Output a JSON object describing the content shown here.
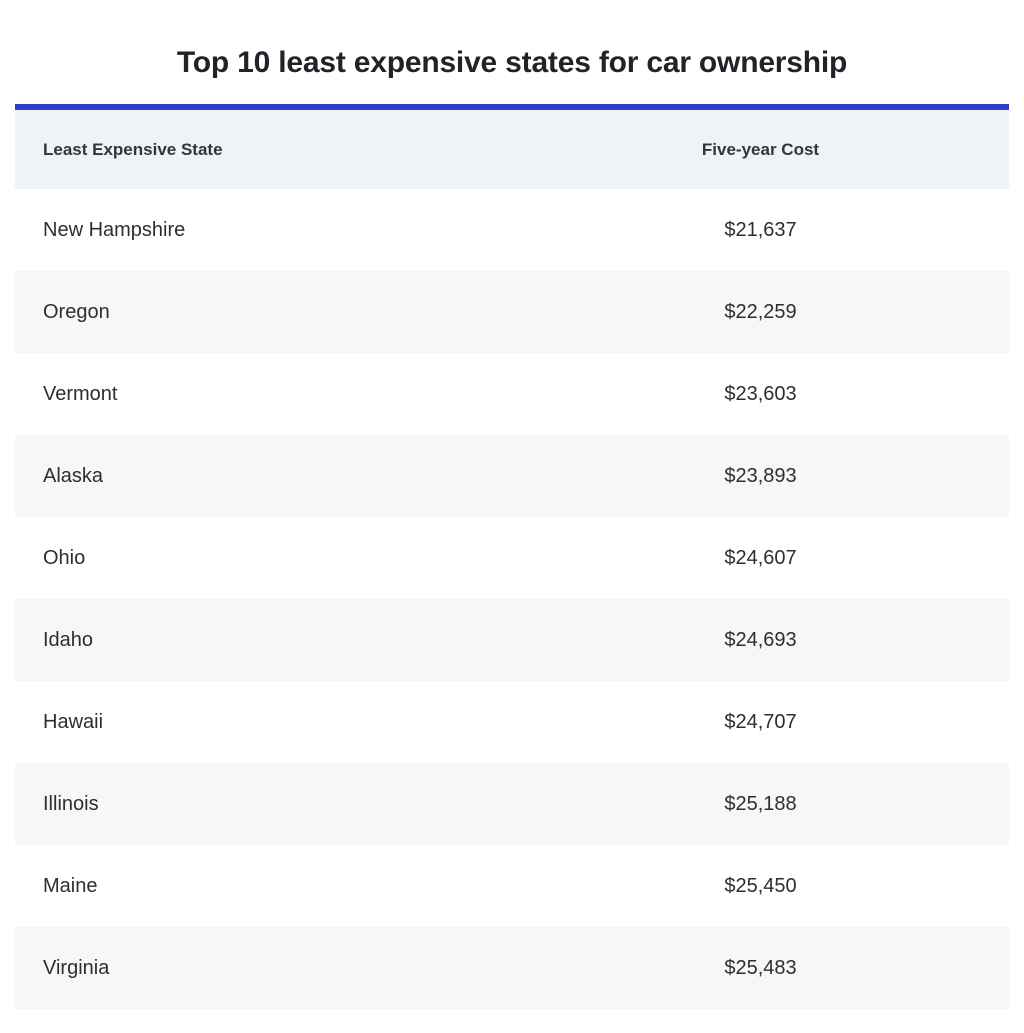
{
  "page": {
    "title": "Top 10 least expensive states for car ownership"
  },
  "table": {
    "columns": {
      "state": "Least Expensive State",
      "cost": "Five-year Cost"
    },
    "rows": [
      {
        "state": "New Hampshire",
        "cost": "$21,637"
      },
      {
        "state": "Oregon",
        "cost": "$22,259"
      },
      {
        "state": "Vermont",
        "cost": "$23,603"
      },
      {
        "state": "Alaska",
        "cost": "$23,893"
      },
      {
        "state": "Ohio",
        "cost": "$24,607"
      },
      {
        "state": "Idaho",
        "cost": "$24,693"
      },
      {
        "state": "Hawaii",
        "cost": "$24,707"
      },
      {
        "state": "Illinois",
        "cost": "$25,188"
      },
      {
        "state": "Maine",
        "cost": "$25,450"
      },
      {
        "state": "Virginia",
        "cost": "$25,483"
      }
    ]
  },
  "colors": {
    "accent_bar": "#3340c4",
    "header_bg": "#eff3f8",
    "stripe_bg": "#f7f7f7",
    "title_text": "#20242a",
    "body_text": "#2b2f33"
  },
  "chart_data": {
    "type": "table",
    "title": "Top 10 least expensive states for car ownership",
    "columns": [
      "Least Expensive State",
      "Five-year Cost"
    ],
    "rows": [
      [
        "New Hampshire",
        21637
      ],
      [
        "Oregon",
        22259
      ],
      [
        "Vermont",
        23603
      ],
      [
        "Alaska",
        23893
      ],
      [
        "Ohio",
        24607
      ],
      [
        "Idaho",
        24693
      ],
      [
        "Hawaii",
        24707
      ],
      [
        "Illinois",
        25188
      ],
      [
        "Maine",
        25450
      ],
      [
        "Virginia",
        25483
      ]
    ],
    "layout_hints": {
      "value_column_alignment": "center",
      "state_column_alignment": "left",
      "striped_rows": true,
      "top_accent_bar": true
    }
  }
}
